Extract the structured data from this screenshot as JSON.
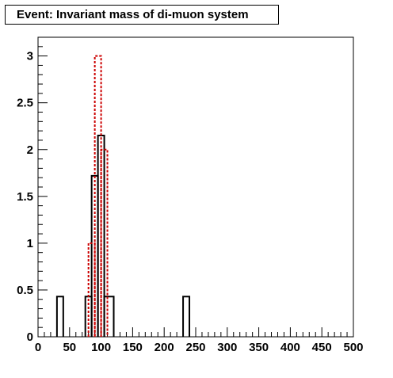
{
  "chart_data": {
    "type": "histogram",
    "title": "Event: Invariant mass of di-muon system",
    "xlabel": "",
    "ylabel": "",
    "xlim": [
      0,
      500
    ],
    "ylim": [
      0,
      3.2
    ],
    "x_ticks": [
      "0",
      "50",
      "100",
      "150",
      "200",
      "250",
      "300",
      "350",
      "400",
      "450",
      "500"
    ],
    "y_ticks": [
      "0",
      "0.5",
      "1",
      "1.5",
      "2",
      "2.5",
      "3"
    ],
    "grid": false,
    "legend": "none",
    "series": [
      {
        "style": "solid",
        "color": "#000000",
        "bins": [
          {
            "x0": 30,
            "x1": 40,
            "value": 0.43
          },
          {
            "x0": 75,
            "x1": 85,
            "value": 0.43
          },
          {
            "x0": 85,
            "x1": 95,
            "value": 1.72
          },
          {
            "x0": 95,
            "x1": 105,
            "value": 2.15
          },
          {
            "x0": 105,
            "x1": 120,
            "value": 0.43
          },
          {
            "x0": 230,
            "x1": 240,
            "value": 0.43
          }
        ]
      },
      {
        "style": "dashed",
        "color": "#cc0000",
        "bins": [
          {
            "x0": 80,
            "x1": 90,
            "value": 1
          },
          {
            "x0": 90,
            "x1": 100,
            "value": 3
          },
          {
            "x0": 100,
            "x1": 110,
            "value": 2
          }
        ]
      }
    ]
  }
}
